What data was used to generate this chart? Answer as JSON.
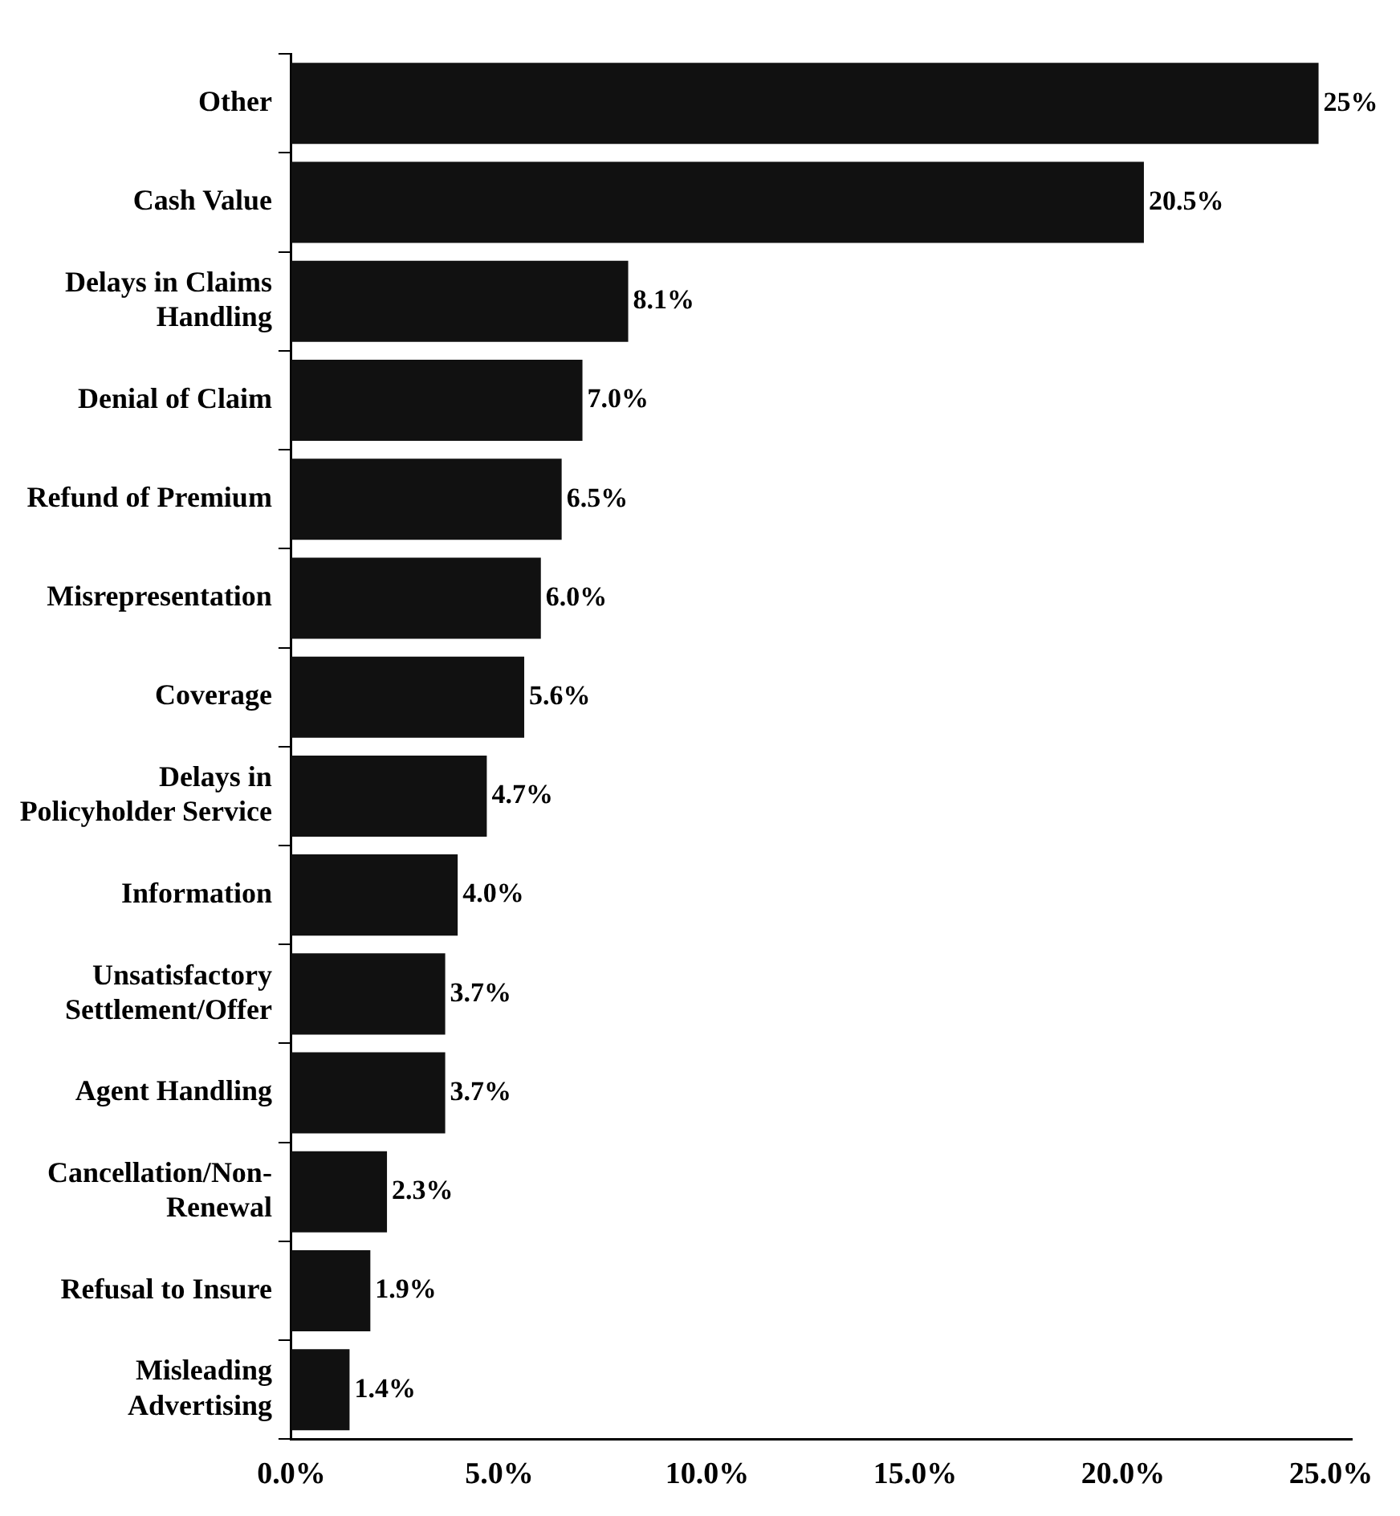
{
  "chart_data": {
    "type": "bar",
    "orientation": "horizontal",
    "categories": [
      "Other",
      "Cash Value",
      "Delays in Claims Handling",
      "Denial of Claim",
      "Refund of Premium",
      "Misrepresentation",
      "Coverage",
      "Delays in Policyholder Service",
      "Information",
      "Unsatisfactory Settlement/Offer",
      "Agent Handling",
      "Cancellation/Non-Renewal",
      "Refusal to Insure",
      "Misleading Advertising"
    ],
    "values": [
      24.7,
      20.5,
      8.1,
      7.0,
      6.5,
      6.0,
      5.6,
      4.7,
      4.0,
      3.7,
      3.7,
      2.3,
      1.9,
      1.4
    ],
    "value_labels": [
      "25%",
      "20.5%",
      "8.1%",
      "7.0%",
      "6.5%",
      "6.0%",
      "5.6%",
      "4.7%",
      "4.0%",
      "3.7%",
      "3.7%",
      "2.3%",
      "1.9%",
      "1.4%"
    ],
    "color": "#111111",
    "xlim": [
      0,
      25.5
    ],
    "xticks": [
      {
        "value": 0,
        "label": "0.0%"
      },
      {
        "value": 5,
        "label": "5.0%"
      },
      {
        "value": 10,
        "label": "10.0%"
      },
      {
        "value": 15,
        "label": "15.0%"
      },
      {
        "value": 20,
        "label": "20.0%"
      },
      {
        "value": 25,
        "label": "25.0%"
      }
    ],
    "grid": false,
    "legend": false
  }
}
